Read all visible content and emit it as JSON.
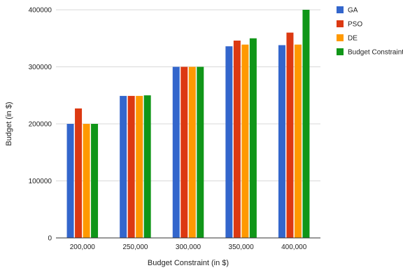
{
  "chart_data": {
    "type": "bar",
    "title": "",
    "xlabel": "Budget Constraint (in $)",
    "ylabel": "Budget (in $)",
    "categories": [
      "200,000",
      "250,000",
      "300,000",
      "350,000",
      "400,000"
    ],
    "ylim": [
      0,
      400000
    ],
    "yticks": [
      0,
      100000,
      200000,
      300000,
      400000
    ],
    "ytick_labels": [
      "0",
      "100000",
      "200000",
      "300000",
      "400000"
    ],
    "grid": true,
    "legend": "right",
    "series": [
      {
        "name": "GA",
        "color": "#3366cc",
        "values": [
          200000,
          249000,
          300000,
          336000,
          338000
        ]
      },
      {
        "name": "PSO",
        "color": "#dc3912",
        "values": [
          227000,
          249000,
          300000,
          346000,
          360000
        ]
      },
      {
        "name": "DE",
        "color": "#ff9900",
        "values": [
          200000,
          249000,
          300000,
          339000,
          339000
        ]
      },
      {
        "name": "Budget Constraint",
        "color": "#109618",
        "values": [
          200000,
          250000,
          300000,
          350000,
          400000
        ]
      }
    ]
  }
}
